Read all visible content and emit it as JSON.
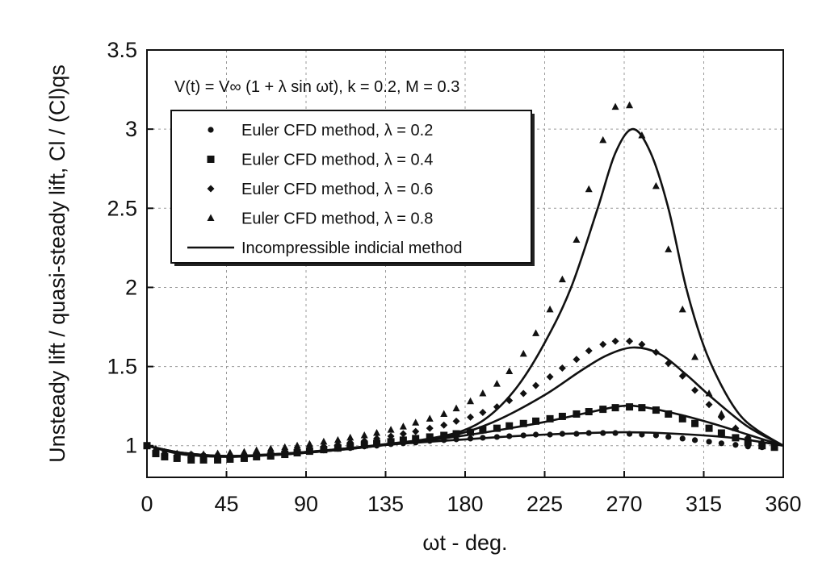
{
  "chart_data": {
    "type": "scatter",
    "annotation": "V(t) = V∞ (1 + λ sin ωt), k = 0.2, M = 0.3",
    "xlabel": "ωt - deg.",
    "ylabel": "Unsteady lift / quasi-steady lift, Cl / (Cl)qs",
    "xlim": [
      0,
      360
    ],
    "ylim": [
      0.8,
      3.5
    ],
    "x_ticks": [
      "0",
      "45",
      "90",
      "135",
      "180",
      "225",
      "270",
      "315",
      "360"
    ],
    "x_tick_values": [
      0,
      45,
      90,
      135,
      180,
      225,
      270,
      315,
      360
    ],
    "y_ticks": [
      "1",
      "1.5",
      "2",
      "2.5",
      "3",
      "3.5"
    ],
    "y_tick_values": [
      1,
      1.5,
      2,
      2.5,
      3,
      3.5
    ],
    "grid": true,
    "legend_position": "top-left",
    "series": [
      {
        "name": "Euler CFD method, λ = 0.2",
        "marker": "circle",
        "kind": "scatter",
        "points": [
          [
            0,
            1.0
          ],
          [
            5,
            0.97
          ],
          [
            10,
            0.96
          ],
          [
            17,
            0.95
          ],
          [
            25,
            0.945
          ],
          [
            32,
            0.94
          ],
          [
            40,
            0.94
          ],
          [
            47,
            0.94
          ],
          [
            55,
            0.945
          ],
          [
            62,
            0.945
          ],
          [
            70,
            0.95
          ],
          [
            78,
            0.955
          ],
          [
            85,
            0.96
          ],
          [
            92,
            0.965
          ],
          [
            100,
            0.97
          ],
          [
            108,
            0.98
          ],
          [
            115,
            0.985
          ],
          [
            123,
            0.995
          ],
          [
            130,
            1.0
          ],
          [
            138,
            1.01
          ],
          [
            145,
            1.015
          ],
          [
            152,
            1.02
          ],
          [
            160,
            1.03
          ],
          [
            168,
            1.035
          ],
          [
            175,
            1.04
          ],
          [
            183,
            1.045
          ],
          [
            190,
            1.05
          ],
          [
            198,
            1.055
          ],
          [
            205,
            1.06
          ],
          [
            213,
            1.065
          ],
          [
            220,
            1.07
          ],
          [
            228,
            1.07
          ],
          [
            235,
            1.075
          ],
          [
            243,
            1.075
          ],
          [
            250,
            1.08
          ],
          [
            258,
            1.08
          ],
          [
            265,
            1.08
          ],
          [
            273,
            1.075
          ],
          [
            280,
            1.07
          ],
          [
            288,
            1.065
          ],
          [
            295,
            1.055
          ],
          [
            303,
            1.045
          ],
          [
            310,
            1.035
          ],
          [
            318,
            1.025
          ],
          [
            325,
            1.015
          ],
          [
            333,
            1.005
          ],
          [
            340,
            0.995
          ],
          [
            348,
            0.99
          ],
          [
            355,
            0.99
          ]
        ]
      },
      {
        "name": "Euler CFD method, λ = 0.4",
        "marker": "square",
        "kind": "scatter",
        "points": [
          [
            0,
            1.0
          ],
          [
            5,
            0.95
          ],
          [
            10,
            0.93
          ],
          [
            17,
            0.92
          ],
          [
            25,
            0.91
          ],
          [
            32,
            0.91
          ],
          [
            40,
            0.91
          ],
          [
            47,
            0.915
          ],
          [
            55,
            0.92
          ],
          [
            62,
            0.93
          ],
          [
            70,
            0.935
          ],
          [
            78,
            0.945
          ],
          [
            85,
            0.955
          ],
          [
            92,
            0.965
          ],
          [
            100,
            0.975
          ],
          [
            108,
            0.985
          ],
          [
            115,
            0.995
          ],
          [
            123,
            1.005
          ],
          [
            130,
            1.015
          ],
          [
            138,
            1.025
          ],
          [
            145,
            1.035
          ],
          [
            152,
            1.045
          ],
          [
            160,
            1.055
          ],
          [
            168,
            1.065
          ],
          [
            175,
            1.075
          ],
          [
            183,
            1.085
          ],
          [
            190,
            1.1
          ],
          [
            198,
            1.11
          ],
          [
            205,
            1.125
          ],
          [
            213,
            1.14
          ],
          [
            220,
            1.155
          ],
          [
            228,
            1.17
          ],
          [
            235,
            1.185
          ],
          [
            243,
            1.2
          ],
          [
            250,
            1.215
          ],
          [
            258,
            1.23
          ],
          [
            265,
            1.24
          ],
          [
            273,
            1.245
          ],
          [
            280,
            1.24
          ],
          [
            288,
            1.225
          ],
          [
            295,
            1.2
          ],
          [
            303,
            1.17
          ],
          [
            310,
            1.14
          ],
          [
            318,
            1.11
          ],
          [
            325,
            1.08
          ],
          [
            333,
            1.05
          ],
          [
            340,
            1.02
          ],
          [
            348,
            1.0
          ],
          [
            355,
            0.99
          ]
        ]
      },
      {
        "name": "Euler CFD method, λ = 0.6",
        "marker": "diamond",
        "kind": "scatter",
        "points": [
          [
            0,
            1.0
          ],
          [
            5,
            0.96
          ],
          [
            10,
            0.94
          ],
          [
            17,
            0.93
          ],
          [
            25,
            0.925
          ],
          [
            32,
            0.92
          ],
          [
            40,
            0.925
          ],
          [
            47,
            0.93
          ],
          [
            55,
            0.935
          ],
          [
            62,
            0.945
          ],
          [
            70,
            0.955
          ],
          [
            78,
            0.965
          ],
          [
            85,
            0.975
          ],
          [
            92,
            0.985
          ],
          [
            100,
            0.995
          ],
          [
            108,
            1.005
          ],
          [
            115,
            1.02
          ],
          [
            123,
            1.03
          ],
          [
            130,
            1.045
          ],
          [
            138,
            1.06
          ],
          [
            145,
            1.075
          ],
          [
            152,
            1.09
          ],
          [
            160,
            1.11
          ],
          [
            168,
            1.13
          ],
          [
            175,
            1.155
          ],
          [
            183,
            1.18
          ],
          [
            190,
            1.21
          ],
          [
            198,
            1.245
          ],
          [
            205,
            1.285
          ],
          [
            213,
            1.33
          ],
          [
            220,
            1.38
          ],
          [
            228,
            1.435
          ],
          [
            235,
            1.49
          ],
          [
            243,
            1.545
          ],
          [
            250,
            1.6
          ],
          [
            258,
            1.64
          ],
          [
            265,
            1.66
          ],
          [
            273,
            1.66
          ],
          [
            280,
            1.64
          ],
          [
            288,
            1.59
          ],
          [
            295,
            1.52
          ],
          [
            303,
            1.44
          ],
          [
            310,
            1.35
          ],
          [
            318,
            1.26
          ],
          [
            325,
            1.18
          ],
          [
            333,
            1.11
          ],
          [
            340,
            1.05
          ],
          [
            348,
            1.02
          ],
          [
            355,
            1.0
          ]
        ]
      },
      {
        "name": "Euler CFD method, λ = 0.8",
        "marker": "triangle",
        "kind": "scatter",
        "points": [
          [
            0,
            1.0
          ],
          [
            5,
            0.98
          ],
          [
            10,
            0.96
          ],
          [
            17,
            0.95
          ],
          [
            25,
            0.945
          ],
          [
            32,
            0.945
          ],
          [
            40,
            0.95
          ],
          [
            47,
            0.955
          ],
          [
            55,
            0.96
          ],
          [
            62,
            0.97
          ],
          [
            70,
            0.98
          ],
          [
            78,
            0.99
          ],
          [
            85,
            1.0
          ],
          [
            92,
            1.01
          ],
          [
            100,
            1.025
          ],
          [
            108,
            1.035
          ],
          [
            115,
            1.05
          ],
          [
            123,
            1.065
          ],
          [
            130,
            1.08
          ],
          [
            138,
            1.1
          ],
          [
            145,
            1.12
          ],
          [
            152,
            1.145
          ],
          [
            160,
            1.17
          ],
          [
            168,
            1.2
          ],
          [
            175,
            1.235
          ],
          [
            183,
            1.28
          ],
          [
            190,
            1.33
          ],
          [
            198,
            1.39
          ],
          [
            205,
            1.47
          ],
          [
            213,
            1.58
          ],
          [
            220,
            1.71
          ],
          [
            228,
            1.86
          ],
          [
            235,
            2.05
          ],
          [
            243,
            2.3
          ],
          [
            250,
            2.62
          ],
          [
            258,
            2.93
          ],
          [
            265,
            3.14
          ],
          [
            273,
            3.15
          ],
          [
            280,
            2.96
          ],
          [
            288,
            2.64
          ],
          [
            295,
            2.24
          ],
          [
            303,
            1.86
          ],
          [
            310,
            1.56
          ],
          [
            318,
            1.33
          ],
          [
            325,
            1.2
          ],
          [
            333,
            1.11
          ],
          [
            340,
            1.05
          ],
          [
            348,
            1.02
          ],
          [
            355,
            1.0
          ]
        ]
      },
      {
        "name": "Incompressible indicial method",
        "marker": "line",
        "kind": "line",
        "curves": [
          [
            [
              0,
              1.0
            ],
            [
              20,
              0.955
            ],
            [
              45,
              0.935
            ],
            [
              70,
              0.945
            ],
            [
              90,
              0.96
            ],
            [
              115,
              0.985
            ],
            [
              135,
              1.005
            ],
            [
              160,
              1.025
            ],
            [
              180,
              1.04
            ],
            [
              200,
              1.055
            ],
            [
              225,
              1.07
            ],
            [
              250,
              1.08
            ],
            [
              270,
              1.085
            ],
            [
              290,
              1.08
            ],
            [
              315,
              1.065
            ],
            [
              335,
              1.045
            ],
            [
              360,
              1.0
            ]
          ],
          [
            [
              0,
              1.0
            ],
            [
              20,
              0.945
            ],
            [
              45,
              0.93
            ],
            [
              70,
              0.94
            ],
            [
              90,
              0.955
            ],
            [
              115,
              0.98
            ],
            [
              135,
              1.005
            ],
            [
              160,
              1.035
            ],
            [
              180,
              1.065
            ],
            [
              200,
              1.1
            ],
            [
              225,
              1.15
            ],
            [
              250,
              1.21
            ],
            [
              268,
              1.25
            ],
            [
              280,
              1.245
            ],
            [
              300,
              1.2
            ],
            [
              320,
              1.14
            ],
            [
              340,
              1.07
            ],
            [
              360,
              1.0
            ]
          ],
          [
            [
              0,
              1.0
            ],
            [
              20,
              0.95
            ],
            [
              45,
              0.93
            ],
            [
              70,
              0.94
            ],
            [
              90,
              0.955
            ],
            [
              115,
              0.98
            ],
            [
              135,
              1.005
            ],
            [
              160,
              1.04
            ],
            [
              180,
              1.085
            ],
            [
              200,
              1.17
            ],
            [
              225,
              1.32
            ],
            [
              245,
              1.47
            ],
            [
              260,
              1.57
            ],
            [
              275,
              1.62
            ],
            [
              290,
              1.58
            ],
            [
              305,
              1.45
            ],
            [
              320,
              1.3
            ],
            [
              340,
              1.12
            ],
            [
              360,
              1.0
            ]
          ],
          [
            [
              0,
              1.0
            ],
            [
              20,
              0.955
            ],
            [
              45,
              0.935
            ],
            [
              70,
              0.945
            ],
            [
              90,
              0.96
            ],
            [
              115,
              0.985
            ],
            [
              135,
              1.01
            ],
            [
              160,
              1.045
            ],
            [
              180,
              1.1
            ],
            [
              195,
              1.2
            ],
            [
              210,
              1.38
            ],
            [
              225,
              1.65
            ],
            [
              240,
              2.0
            ],
            [
              255,
              2.5
            ],
            [
              265,
              2.85
            ],
            [
              275,
              3.0
            ],
            [
              285,
              2.85
            ],
            [
              295,
              2.5
            ],
            [
              305,
              2.0
            ],
            [
              315,
              1.63
            ],
            [
              325,
              1.38
            ],
            [
              335,
              1.2
            ],
            [
              345,
              1.1
            ],
            [
              360,
              1.0
            ]
          ]
        ]
      }
    ]
  }
}
